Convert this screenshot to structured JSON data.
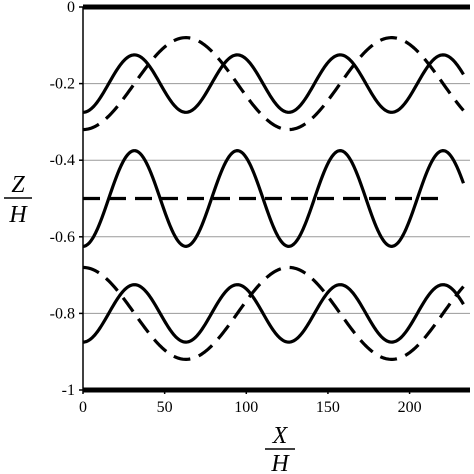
{
  "chart_data": {
    "type": "line",
    "title": "",
    "xlabel": {
      "numerator": "X",
      "denominator": "H"
    },
    "ylabel": {
      "numerator": "Z",
      "denominator": "H"
    },
    "xlim": [
      0,
      237
    ],
    "ylim": [
      -1,
      0
    ],
    "xticks": [
      0,
      50,
      100,
      150,
      200
    ],
    "xtick_labels": [
      "0",
      "50",
      "100",
      "150",
      "200"
    ],
    "yticks": [
      0,
      -0.2,
      -0.4,
      -0.6,
      -0.8,
      -1
    ],
    "ytick_labels": [
      "0",
      "-0.2",
      "-0.4",
      "-0.6",
      "-0.8",
      "-1"
    ],
    "grid": {
      "horizontal": true,
      "vertical": false
    },
    "boundaries": [
      0,
      -1
    ],
    "series": [
      {
        "style": "solid",
        "kind": "sine",
        "x_range": [
          0,
          233
        ],
        "mean": -0.2,
        "amplitude": 0.075,
        "period": 63,
        "x_at_trough": 0
      },
      {
        "style": "dashed",
        "kind": "sine",
        "x_range": [
          0,
          233
        ],
        "mean": -0.2,
        "amplitude": 0.12,
        "period": 126,
        "x_at_trough": 0
      },
      {
        "style": "solid",
        "kind": "sine",
        "x_range": [
          0,
          233
        ],
        "mean": -0.5,
        "amplitude": 0.125,
        "period": 63,
        "x_at_trough": 0
      },
      {
        "style": "dashed",
        "kind": "flat",
        "x_range": [
          0,
          218
        ],
        "value": -0.5
      },
      {
        "style": "solid",
        "kind": "sine",
        "x_range": [
          0,
          233
        ],
        "mean": -0.8,
        "amplitude": 0.075,
        "period": 63,
        "x_at_trough": 0
      },
      {
        "style": "dashed",
        "kind": "sine",
        "x_range": [
          0,
          233
        ],
        "mean": -0.8,
        "amplitude": 0.12,
        "period": 126,
        "x_at_trough": 63
      }
    ]
  }
}
